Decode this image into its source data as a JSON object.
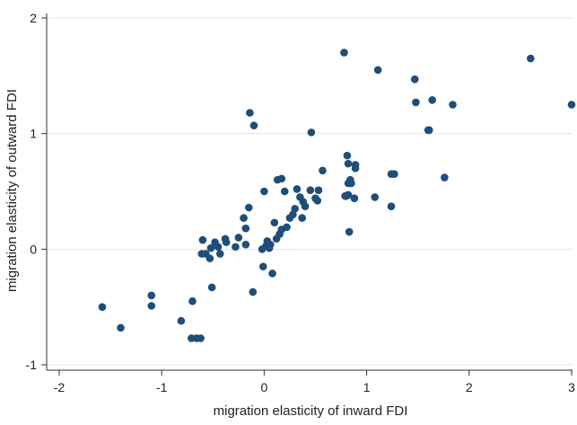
{
  "chart_data": {
    "type": "scatter",
    "xlabel": "migration elasticity of inward FDI",
    "ylabel": "migration elasticity of outward FDI",
    "xlim": [
      -2,
      3
    ],
    "ylim": [
      -1,
      2
    ],
    "xticks": [
      -2,
      -1,
      0,
      1,
      2,
      3
    ],
    "yticks": [
      -1,
      0,
      1,
      2
    ],
    "grid": "horizontal",
    "marker_color": "#1f4e79",
    "points": [
      [
        -1.58,
        -0.5
      ],
      [
        -1.4,
        -0.68
      ],
      [
        -1.1,
        -0.4
      ],
      [
        -1.1,
        -0.49
      ],
      [
        -0.81,
        -0.62
      ],
      [
        -0.7,
        -0.45
      ],
      [
        -0.71,
        -0.77
      ],
      [
        -0.66,
        -0.77
      ],
      [
        -0.62,
        -0.77
      ],
      [
        -0.61,
        -0.04
      ],
      [
        -0.6,
        0.08
      ],
      [
        -0.57,
        -0.04
      ],
      [
        -0.53,
        -0.08
      ],
      [
        -0.52,
        0.01
      ],
      [
        -0.51,
        -0.33
      ],
      [
        -0.48,
        0.06
      ],
      [
        -0.45,
        0.02
      ],
      [
        -0.43,
        -0.04
      ],
      [
        -0.38,
        0.09
      ],
      [
        -0.37,
        0.06
      ],
      [
        -0.28,
        0.02
      ],
      [
        -0.25,
        0.1
      ],
      [
        -0.2,
        0.27
      ],
      [
        -0.18,
        0.18
      ],
      [
        -0.18,
        0.04
      ],
      [
        -0.15,
        0.36
      ],
      [
        -0.14,
        1.18
      ],
      [
        -0.1,
        1.07
      ],
      [
        -0.11,
        -0.37
      ],
      [
        -0.02,
        0.0
      ],
      [
        -0.01,
        -0.15
      ],
      [
        0.0,
        0.5
      ],
      [
        0.02,
        0.03
      ],
      [
        0.03,
        0.07
      ],
      [
        0.05,
        0.01
      ],
      [
        0.06,
        0.04
      ],
      [
        0.08,
        -0.21
      ],
      [
        0.1,
        0.23
      ],
      [
        0.12,
        0.09
      ],
      [
        0.13,
        0.6
      ],
      [
        0.15,
        0.13
      ],
      [
        0.17,
        0.61
      ],
      [
        0.17,
        0.17
      ],
      [
        0.2,
        0.5
      ],
      [
        0.22,
        0.19
      ],
      [
        0.25,
        0.27
      ],
      [
        0.28,
        0.3
      ],
      [
        0.3,
        0.35
      ],
      [
        0.32,
        0.52
      ],
      [
        0.35,
        0.45
      ],
      [
        0.37,
        0.27
      ],
      [
        0.38,
        0.41
      ],
      [
        0.4,
        0.37
      ],
      [
        0.45,
        0.51
      ],
      [
        0.46,
        1.01
      ],
      [
        0.5,
        0.44
      ],
      [
        0.52,
        0.42
      ],
      [
        0.53,
        0.51
      ],
      [
        0.57,
        0.68
      ],
      [
        0.78,
        1.7
      ],
      [
        0.79,
        0.46
      ],
      [
        0.8,
        0.46
      ],
      [
        0.81,
        0.81
      ],
      [
        0.82,
        0.57
      ],
      [
        0.82,
        0.47
      ],
      [
        0.82,
        0.74
      ],
      [
        0.83,
        0.15
      ],
      [
        0.84,
        0.6
      ],
      [
        0.85,
        0.57
      ],
      [
        0.88,
        0.44
      ],
      [
        0.89,
        0.73
      ],
      [
        0.89,
        0.7
      ],
      [
        1.08,
        0.45
      ],
      [
        1.11,
        1.55
      ],
      [
        1.24,
        0.37
      ],
      [
        1.24,
        0.65
      ],
      [
        1.27,
        0.65
      ],
      [
        1.47,
        1.47
      ],
      [
        1.48,
        1.27
      ],
      [
        1.6,
        1.03
      ],
      [
        1.61,
        1.03
      ],
      [
        1.64,
        1.29
      ],
      [
        1.76,
        0.62
      ],
      [
        1.84,
        1.25
      ],
      [
        2.6,
        1.65
      ],
      [
        3.0,
        1.25
      ]
    ]
  }
}
